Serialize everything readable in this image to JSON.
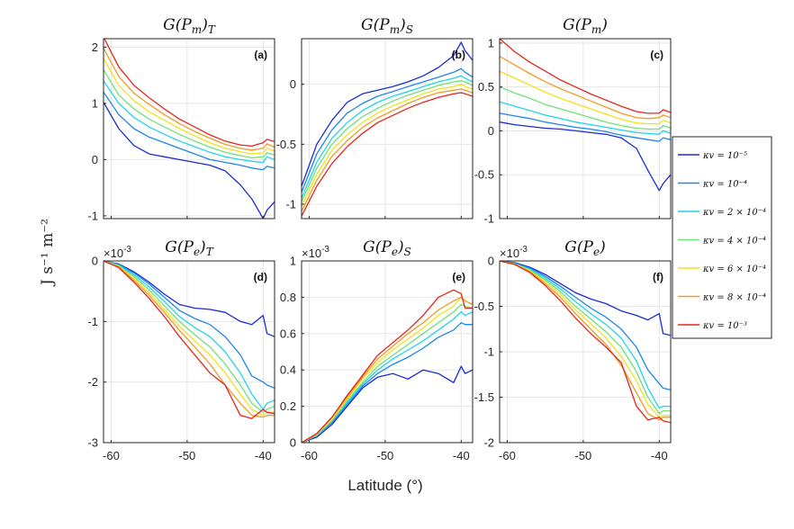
{
  "figure": {
    "x_label": "Latitude (°)",
    "y_label": "J s⁻¹ m⁻²",
    "legend_entries": [
      {
        "name": "κv = 10⁻⁵",
        "color": "#1a2bd6"
      },
      {
        "name": "κv = 10⁻⁴",
        "color": "#1e86ec"
      },
      {
        "name": "κv = 2 × 10⁻⁴",
        "color": "#1fd4ea"
      },
      {
        "name": "κv = 4 × 10⁻⁴",
        "color": "#6fe07a"
      },
      {
        "name": "κv = 6 × 10⁻⁴",
        "color": "#f2e11b"
      },
      {
        "name": "κv = 8 × 10⁻⁴",
        "color": "#f39a24"
      },
      {
        "name": "κv = 10⁻³",
        "color": "#e4261b"
      }
    ]
  },
  "chart_data": [
    {
      "type": "line",
      "id": "a",
      "title": "G(Pm)T",
      "panel_label": "(a)",
      "xlim": [
        -61,
        -38.5
      ],
      "ylim": [
        -1.05,
        2.15
      ],
      "xticks": [
        -60,
        -50,
        -40
      ],
      "xtick_labels": [
        "",
        "",
        ""
      ],
      "yticks": [
        -1,
        0,
        1,
        2
      ],
      "ytick_labels": [
        "-1",
        "0",
        "1",
        "2"
      ],
      "multiplier": "",
      "x": [
        -61,
        -59,
        -57,
        -55,
        -53,
        -51,
        -49,
        -47,
        -45,
        -43,
        -41.5,
        -40,
        -39.5,
        -38.5
      ],
      "series": [
        {
          "name": "κv = 10⁻⁵",
          "values": [
            1.02,
            0.55,
            0.25,
            0.1,
            0.05,
            0.0,
            -0.05,
            -0.1,
            -0.2,
            -0.45,
            -0.7,
            -1.05,
            -0.9,
            -0.75
          ]
        },
        {
          "name": "κv = 10⁻⁴",
          "values": [
            1.2,
            0.8,
            0.55,
            0.4,
            0.3,
            0.2,
            0.1,
            0.0,
            -0.05,
            -0.1,
            -0.15,
            -0.18,
            -0.12,
            -0.15
          ]
        },
        {
          "name": "κv = 2 × 10⁻⁴",
          "values": [
            1.4,
            1.0,
            0.75,
            0.58,
            0.45,
            0.33,
            0.23,
            0.13,
            0.05,
            0.0,
            -0.03,
            -0.05,
            0.05,
            0.0
          ]
        },
        {
          "name": "κv = 4 × 10⁻⁴",
          "values": [
            1.6,
            1.15,
            0.9,
            0.72,
            0.58,
            0.45,
            0.33,
            0.22,
            0.13,
            0.07,
            0.03,
            0.05,
            0.12,
            0.08
          ]
        },
        {
          "name": "κv = 6 × 10⁻⁴",
          "values": [
            1.8,
            1.32,
            1.05,
            0.85,
            0.7,
            0.55,
            0.42,
            0.3,
            0.2,
            0.14,
            0.1,
            0.12,
            0.2,
            0.15
          ]
        },
        {
          "name": "κv = 8 × 10⁻⁴",
          "values": [
            1.98,
            1.48,
            1.18,
            0.98,
            0.8,
            0.64,
            0.5,
            0.38,
            0.27,
            0.2,
            0.17,
            0.2,
            0.28,
            0.22
          ]
        },
        {
          "name": "κv = 10⁻³",
          "values": [
            2.18,
            1.65,
            1.32,
            1.1,
            0.9,
            0.72,
            0.58,
            0.44,
            0.33,
            0.26,
            0.24,
            0.3,
            0.36,
            0.32
          ]
        }
      ]
    },
    {
      "type": "line",
      "id": "b",
      "title": "G(Pm)S",
      "panel_label": "(b)",
      "xlim": [
        -61,
        -38.5
      ],
      "ylim": [
        -1.12,
        0.38
      ],
      "xticks": [
        -60,
        -50,
        -40
      ],
      "xtick_labels": [
        "",
        "",
        ""
      ],
      "yticks": [
        -1,
        -0.5,
        0
      ],
      "ytick_labels": [
        "-1",
        "-0.5",
        "0"
      ],
      "multiplier": "",
      "x": [
        -61,
        -59,
        -57,
        -55,
        -53,
        -51,
        -49,
        -47,
        -45,
        -43,
        -41,
        -40,
        -39.5,
        -38.5
      ],
      "series": [
        {
          "name": "κv = 10⁻⁵",
          "values": [
            -0.85,
            -0.5,
            -0.3,
            -0.15,
            -0.08,
            -0.05,
            -0.02,
            0.02,
            0.07,
            0.14,
            0.24,
            0.35,
            0.28,
            0.2
          ]
        },
        {
          "name": "κv = 10⁻⁴",
          "values": [
            -0.9,
            -0.58,
            -0.38,
            -0.24,
            -0.16,
            -0.1,
            -0.06,
            -0.02,
            0.02,
            0.06,
            0.1,
            0.13,
            0.1,
            0.06
          ]
        },
        {
          "name": "κv = 2 × 10⁻⁴",
          "values": [
            -0.95,
            -0.65,
            -0.45,
            -0.32,
            -0.22,
            -0.15,
            -0.1,
            -0.06,
            -0.02,
            0.02,
            0.05,
            0.07,
            0.05,
            0.02
          ]
        },
        {
          "name": "κv = 4 × 10⁻⁴",
          "values": [
            -0.98,
            -0.7,
            -0.5,
            -0.37,
            -0.27,
            -0.2,
            -0.14,
            -0.09,
            -0.05,
            -0.01,
            0.02,
            0.03,
            0.02,
            -0.01
          ]
        },
        {
          "name": "κv = 6 × 10⁻⁴",
          "values": [
            -1.02,
            -0.75,
            -0.55,
            -0.42,
            -0.32,
            -0.24,
            -0.18,
            -0.13,
            -0.08,
            -0.04,
            -0.02,
            0.0,
            -0.02,
            -0.04
          ]
        },
        {
          "name": "κv = 8 × 10⁻⁴",
          "values": [
            -1.06,
            -0.8,
            -0.6,
            -0.47,
            -0.36,
            -0.28,
            -0.22,
            -0.16,
            -0.11,
            -0.07,
            -0.05,
            -0.04,
            -0.05,
            -0.07
          ]
        },
        {
          "name": "κv = 10⁻³",
          "values": [
            -1.1,
            -0.85,
            -0.66,
            -0.52,
            -0.41,
            -0.32,
            -0.26,
            -0.2,
            -0.15,
            -0.11,
            -0.08,
            -0.07,
            -0.08,
            -0.1
          ]
        }
      ]
    },
    {
      "type": "line",
      "id": "c",
      "title": "G(Pm)",
      "panel_label": "(c)",
      "xlim": [
        -61,
        -38.5
      ],
      "ylim": [
        -1.0,
        1.05
      ],
      "xticks": [
        -60,
        -50,
        -40
      ],
      "xtick_labels": [
        "",
        "",
        ""
      ],
      "yticks": [
        -1,
        -0.5,
        0,
        0.5,
        1
      ],
      "ytick_labels": [
        "-1",
        "-0.5",
        "0",
        "0.5",
        "1"
      ],
      "multiplier": "",
      "x": [
        -61,
        -59,
        -57,
        -55,
        -53,
        -51,
        -49,
        -47,
        -45,
        -43,
        -41.5,
        -40,
        -39.5,
        -38.5
      ],
      "series": [
        {
          "name": "κv = 10⁻⁵",
          "values": [
            0.1,
            0.07,
            0.05,
            0.03,
            0.02,
            0.0,
            -0.02,
            -0.04,
            -0.08,
            -0.2,
            -0.45,
            -0.68,
            -0.6,
            -0.5
          ]
        },
        {
          "name": "κv = 10⁻⁴",
          "values": [
            0.2,
            0.17,
            0.14,
            0.1,
            0.07,
            0.04,
            0.02,
            -0.01,
            -0.05,
            -0.08,
            -0.1,
            -0.12,
            -0.08,
            -0.1
          ]
        },
        {
          "name": "κv = 2 × 10⁻⁴",
          "values": [
            0.33,
            0.28,
            0.23,
            0.18,
            0.14,
            0.1,
            0.07,
            0.04,
            0.01,
            -0.02,
            -0.03,
            -0.04,
            0.0,
            -0.03
          ]
        },
        {
          "name": "κv = 4 × 10⁻⁴",
          "values": [
            0.5,
            0.43,
            0.37,
            0.3,
            0.25,
            0.2,
            0.15,
            0.1,
            0.06,
            0.03,
            0.02,
            0.02,
            0.06,
            0.03
          ]
        },
        {
          "name": "κv = 6 × 10⁻⁴",
          "values": [
            0.68,
            0.6,
            0.52,
            0.44,
            0.37,
            0.31,
            0.25,
            0.19,
            0.13,
            0.09,
            0.08,
            0.08,
            0.12,
            0.09
          ]
        },
        {
          "name": "κv = 8 × 10⁻⁴",
          "values": [
            0.85,
            0.75,
            0.65,
            0.56,
            0.48,
            0.41,
            0.34,
            0.27,
            0.2,
            0.15,
            0.14,
            0.15,
            0.18,
            0.15
          ]
        },
        {
          "name": "κv = 10⁻³",
          "values": [
            1.05,
            0.9,
            0.78,
            0.68,
            0.58,
            0.5,
            0.42,
            0.35,
            0.28,
            0.22,
            0.2,
            0.2,
            0.24,
            0.21
          ]
        }
      ]
    },
    {
      "type": "line",
      "id": "d",
      "title": "G(Pe)T",
      "panel_label": "(d)",
      "xlim": [
        -61,
        -38.5
      ],
      "ylim": [
        -3,
        0
      ],
      "xticks": [
        -60,
        -50,
        -40
      ],
      "xtick_labels": [
        "-60",
        "-50",
        "-40"
      ],
      "yticks": [
        -3,
        -2,
        -1,
        0
      ],
      "ytick_labels": [
        "-3",
        "-2",
        "-1",
        "0"
      ],
      "multiplier": "×10-3",
      "x": [
        -61,
        -59,
        -57,
        -55,
        -53,
        -51,
        -49,
        -47,
        -45,
        -43,
        -41.5,
        -40,
        -39.5,
        -38.5
      ],
      "series": [
        {
          "name": "κv = 10⁻⁵",
          "values": [
            0.0,
            -0.05,
            -0.18,
            -0.35,
            -0.55,
            -0.72,
            -0.78,
            -0.8,
            -0.85,
            -1.0,
            -1.05,
            -0.9,
            -1.2,
            -1.25
          ]
        },
        {
          "name": "κv = 10⁻⁴",
          "values": [
            0.0,
            -0.06,
            -0.2,
            -0.38,
            -0.6,
            -0.82,
            -0.95,
            -1.05,
            -1.25,
            -1.55,
            -1.9,
            -2.0,
            -2.05,
            -2.1
          ]
        },
        {
          "name": "κv = 2 × 10⁻⁴",
          "values": [
            0.0,
            -0.07,
            -0.23,
            -0.43,
            -0.67,
            -0.92,
            -1.1,
            -1.25,
            -1.5,
            -1.85,
            -2.2,
            -2.45,
            -2.35,
            -2.3
          ]
        },
        {
          "name": "κv = 4 × 10⁻⁴",
          "values": [
            0.0,
            -0.08,
            -0.26,
            -0.48,
            -0.74,
            -1.0,
            -1.22,
            -1.42,
            -1.7,
            -2.05,
            -2.35,
            -2.5,
            -2.45,
            -2.4
          ]
        },
        {
          "name": "κv = 6 × 10⁻⁴",
          "values": [
            0.0,
            -0.09,
            -0.29,
            -0.53,
            -0.8,
            -1.08,
            -1.32,
            -1.55,
            -1.85,
            -2.2,
            -2.45,
            -2.55,
            -2.5,
            -2.5
          ]
        },
        {
          "name": "κv = 8 × 10⁻⁴",
          "values": [
            0.0,
            -0.1,
            -0.32,
            -0.57,
            -0.85,
            -1.15,
            -1.42,
            -1.7,
            -2.05,
            -2.35,
            -2.55,
            -2.58,
            -2.55,
            -2.55
          ]
        },
        {
          "name": "κv = 10⁻³",
          "values": [
            0.0,
            -0.11,
            -0.35,
            -0.62,
            -0.92,
            -1.25,
            -1.55,
            -1.85,
            -2.05,
            -2.55,
            -2.6,
            -2.45,
            -2.5,
            -2.52
          ]
        }
      ]
    },
    {
      "type": "line",
      "id": "e",
      "title": "G(Pe)S",
      "panel_label": "(e)",
      "xlim": [
        -61,
        -38.5
      ],
      "ylim": [
        0,
        1
      ],
      "xticks": [
        -60,
        -50,
        -40
      ],
      "xtick_labels": [
        "-60",
        "-50",
        "-40"
      ],
      "yticks": [
        0,
        0.2,
        0.4,
        0.6,
        0.8,
        1
      ],
      "ytick_labels": [
        "0",
        "0.2",
        "0.4",
        "0.6",
        "0.8",
        "1"
      ],
      "multiplier": "×10-3",
      "x": [
        -61,
        -59,
        -57,
        -55,
        -53,
        -51,
        -49,
        -47,
        -45,
        -43,
        -41,
        -40,
        -39.5,
        -38.5
      ],
      "series": [
        {
          "name": "κv = 10⁻⁵",
          "values": [
            0.0,
            0.03,
            0.1,
            0.2,
            0.3,
            0.36,
            0.38,
            0.35,
            0.4,
            0.38,
            0.33,
            0.42,
            0.38,
            0.4
          ]
        },
        {
          "name": "κv = 10⁻⁴",
          "values": [
            0.0,
            0.04,
            0.11,
            0.21,
            0.31,
            0.38,
            0.43,
            0.47,
            0.52,
            0.58,
            0.62,
            0.66,
            0.65,
            0.65
          ]
        },
        {
          "name": "κv = 2 × 10⁻⁴",
          "values": [
            0.0,
            0.04,
            0.12,
            0.22,
            0.32,
            0.4,
            0.46,
            0.51,
            0.56,
            0.62,
            0.68,
            0.72,
            0.7,
            0.72
          ]
        },
        {
          "name": "κv = 4 × 10⁻⁴",
          "values": [
            0.0,
            0.04,
            0.12,
            0.23,
            0.33,
            0.42,
            0.48,
            0.54,
            0.6,
            0.66,
            0.72,
            0.76,
            0.75,
            0.74
          ]
        },
        {
          "name": "κv = 6 × 10⁻⁴",
          "values": [
            0.0,
            0.05,
            0.13,
            0.24,
            0.35,
            0.44,
            0.51,
            0.57,
            0.63,
            0.7,
            0.75,
            0.8,
            0.78,
            0.76
          ]
        },
        {
          "name": "κv = 8 × 10⁻⁴",
          "values": [
            0.0,
            0.05,
            0.14,
            0.25,
            0.36,
            0.46,
            0.53,
            0.6,
            0.66,
            0.73,
            0.78,
            0.8,
            0.78,
            0.76
          ]
        },
        {
          "name": "κv = 10⁻³",
          "values": [
            0.0,
            0.05,
            0.14,
            0.26,
            0.37,
            0.48,
            0.55,
            0.62,
            0.7,
            0.8,
            0.84,
            0.82,
            0.74,
            0.74
          ]
        }
      ]
    },
    {
      "type": "line",
      "id": "f",
      "title": "G(Pe)",
      "panel_label": "(f)",
      "xlim": [
        -61,
        -38.5
      ],
      "ylim": [
        -2,
        0
      ],
      "xticks": [
        -60,
        -50,
        -40
      ],
      "xtick_labels": [
        "-60",
        "-50",
        "-40"
      ],
      "yticks": [
        -2,
        -1.5,
        -1,
        -0.5,
        0
      ],
      "ytick_labels": [
        "-2",
        "-1.5",
        "-1",
        "-0.5",
        "0"
      ],
      "multiplier": "×10-3",
      "x": [
        -61,
        -59,
        -57,
        -55,
        -53,
        -51,
        -49,
        -47,
        -45,
        -43,
        -41.5,
        -40,
        -39.5,
        -38.5
      ],
      "series": [
        {
          "name": "κv = 10⁻⁵",
          "values": [
            0.0,
            -0.02,
            -0.07,
            -0.15,
            -0.25,
            -0.35,
            -0.42,
            -0.47,
            -0.55,
            -0.6,
            -0.65,
            -0.58,
            -0.8,
            -0.82
          ]
        },
        {
          "name": "κv = 10⁻⁴",
          "values": [
            0.0,
            -0.03,
            -0.08,
            -0.17,
            -0.28,
            -0.4,
            -0.52,
            -0.62,
            -0.75,
            -0.95,
            -1.2,
            -1.35,
            -1.4,
            -1.42
          ]
        },
        {
          "name": "κv = 2 × 10⁻⁴",
          "values": [
            0.0,
            -0.03,
            -0.09,
            -0.19,
            -0.31,
            -0.45,
            -0.58,
            -0.7,
            -0.85,
            -1.1,
            -1.4,
            -1.62,
            -1.6,
            -1.6
          ]
        },
        {
          "name": "κv = 4 × 10⁻⁴",
          "values": [
            0.0,
            -0.03,
            -0.1,
            -0.21,
            -0.34,
            -0.5,
            -0.64,
            -0.78,
            -0.95,
            -1.22,
            -1.5,
            -1.68,
            -1.65,
            -1.65
          ]
        },
        {
          "name": "κv = 6 × 10⁻⁴",
          "values": [
            0.0,
            -0.04,
            -0.11,
            -0.23,
            -0.37,
            -0.54,
            -0.69,
            -0.85,
            -1.05,
            -1.32,
            -1.58,
            -1.72,
            -1.7,
            -1.7
          ]
        },
        {
          "name": "κv = 8 × 10⁻⁴",
          "values": [
            0.0,
            -0.04,
            -0.12,
            -0.25,
            -0.4,
            -0.58,
            -0.75,
            -0.92,
            -1.15,
            -1.45,
            -1.68,
            -1.75,
            -1.72,
            -1.72
          ]
        },
        {
          "name": "κv = 10⁻³",
          "values": [
            0.0,
            -0.04,
            -0.13,
            -0.27,
            -0.44,
            -0.63,
            -0.8,
            -0.95,
            -1.12,
            -1.6,
            -1.75,
            -1.72,
            -1.76,
            -1.78
          ]
        }
      ]
    }
  ]
}
